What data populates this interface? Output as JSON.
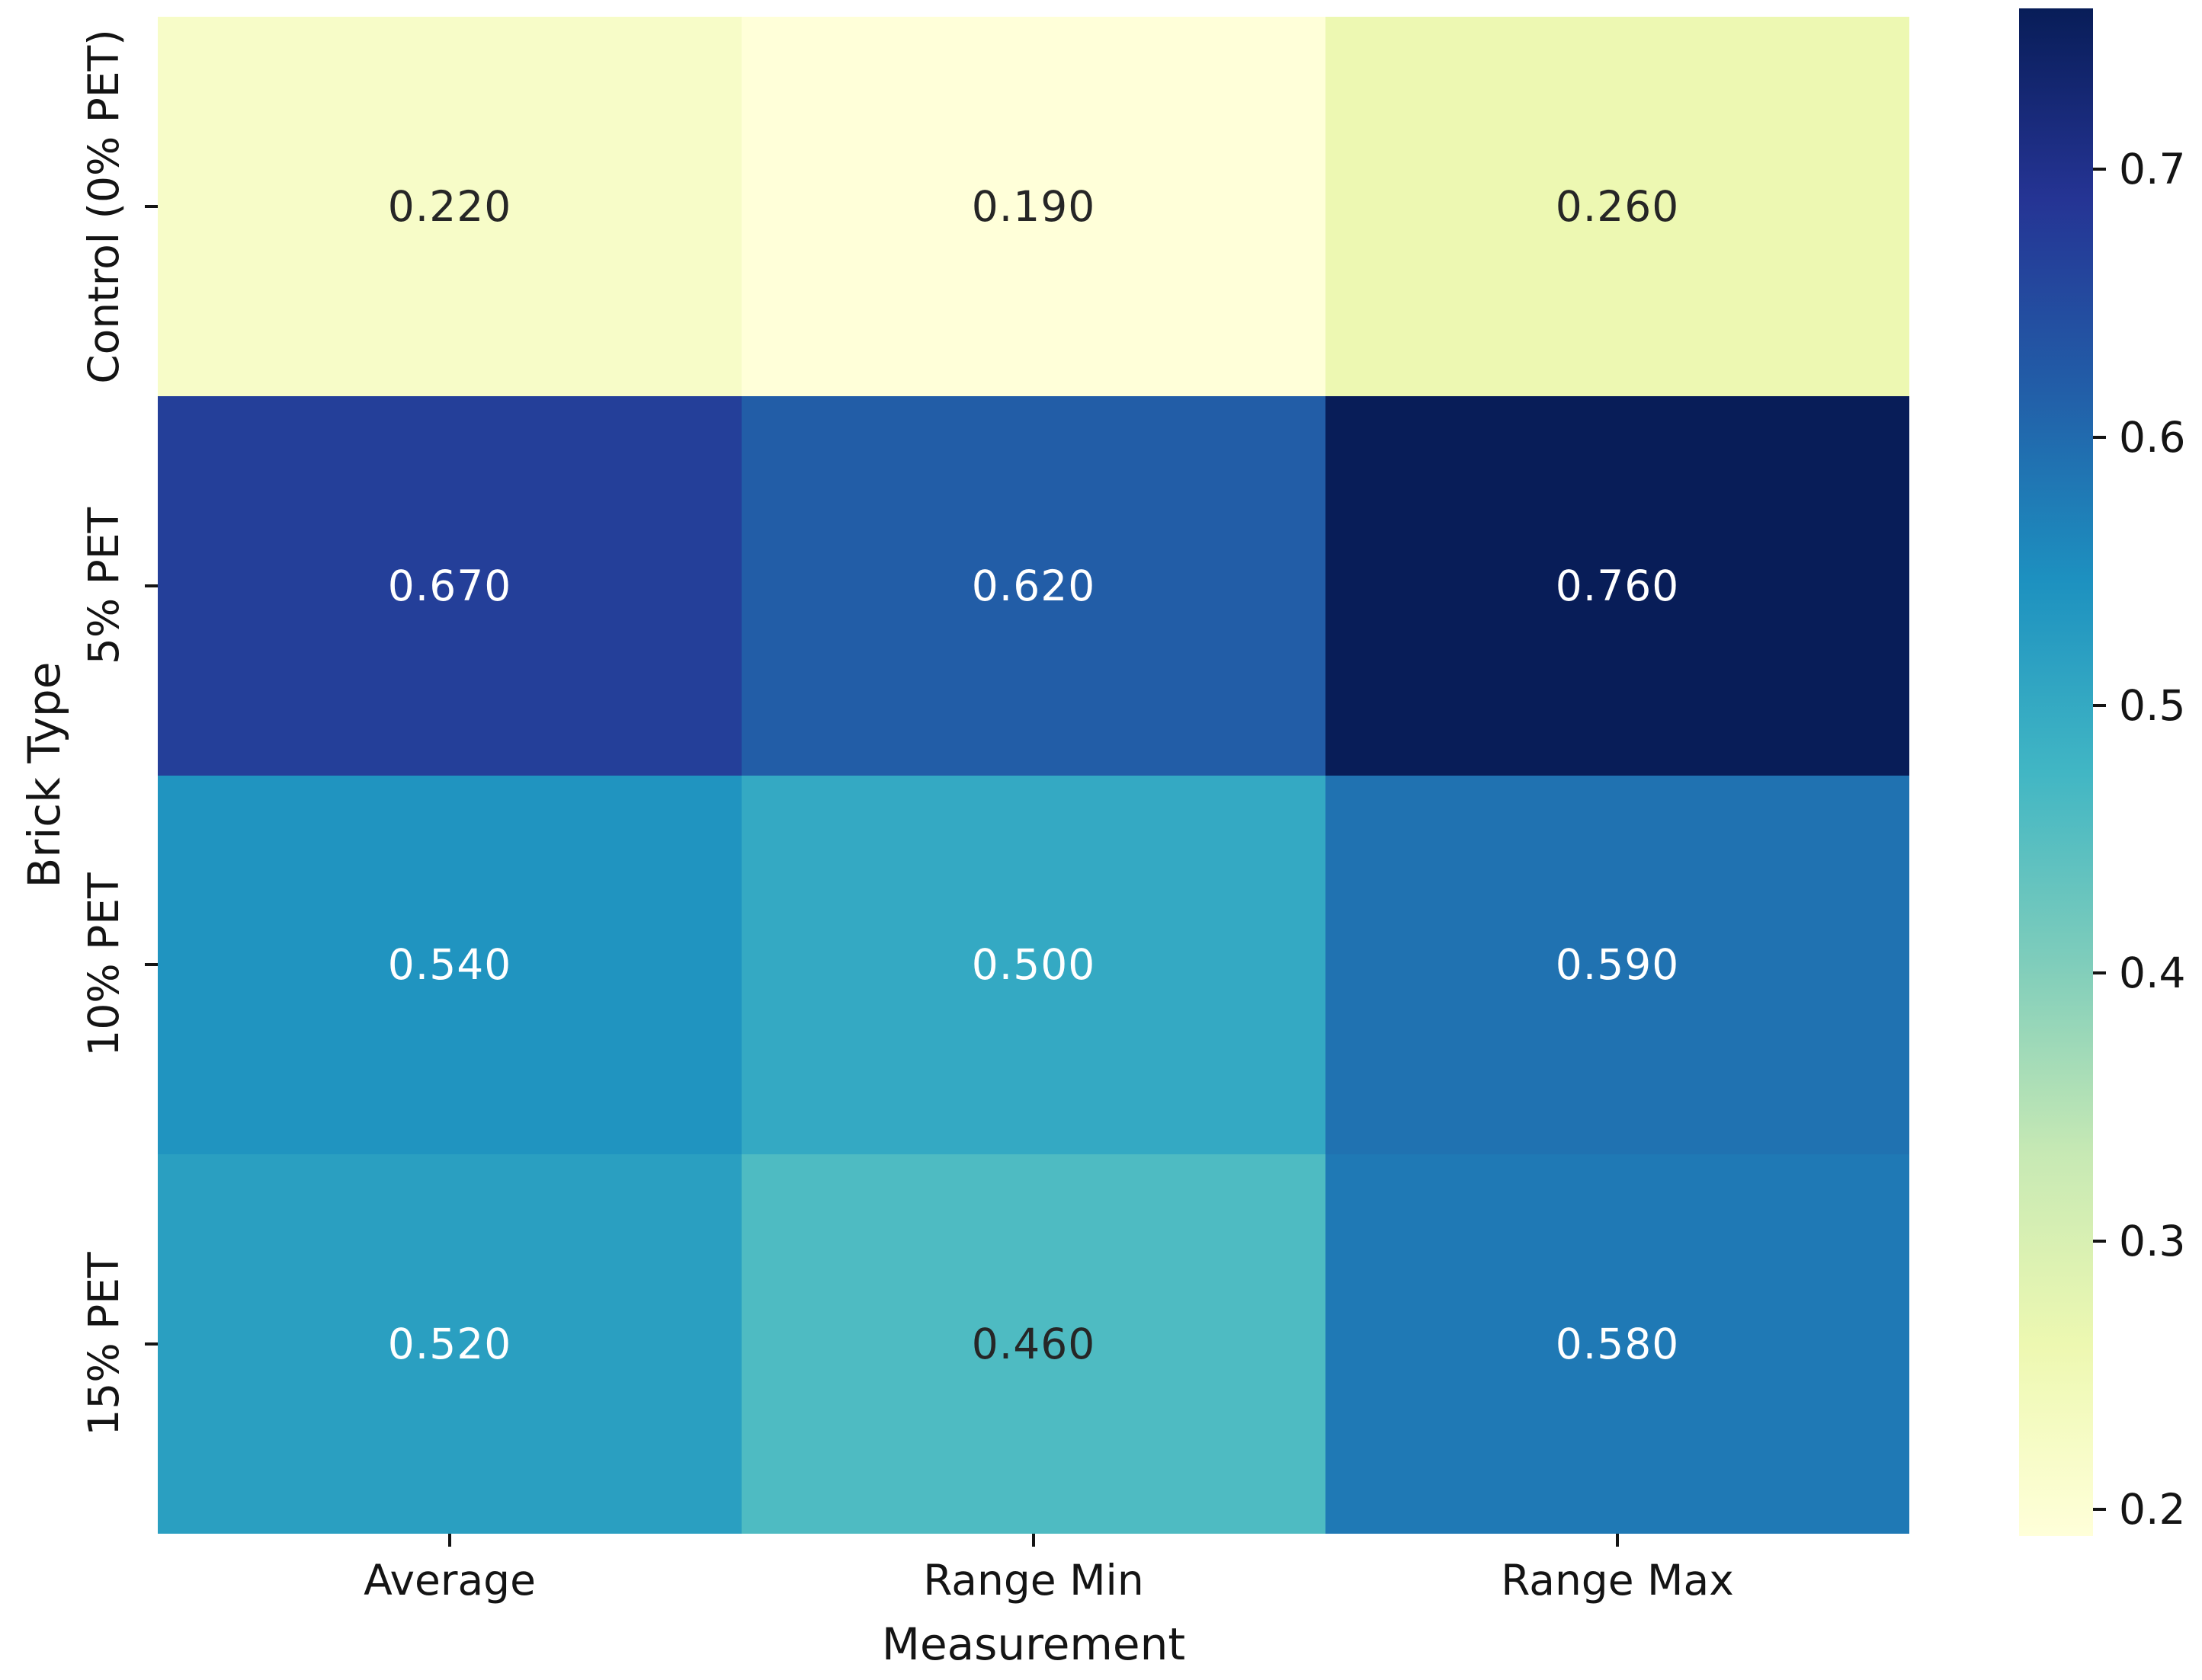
{
  "chart_data": {
    "type": "heatmap",
    "title": "",
    "xlabel": "Measurement",
    "ylabel": "Brick Type",
    "x_categories": [
      "Average",
      "Range Min",
      "Range Max"
    ],
    "y_categories": [
      "Control (0% PET)",
      "5% PET",
      "10% PET",
      "15% PET"
    ],
    "values": [
      [
        0.22,
        0.19,
        0.26
      ],
      [
        0.67,
        0.62,
        0.76
      ],
      [
        0.54,
        0.5,
        0.59
      ],
      [
        0.52,
        0.46,
        0.58
      ]
    ],
    "cell_labels": [
      [
        "0.220",
        "0.190",
        "0.260"
      ],
      [
        "0.670",
        "0.620",
        "0.760"
      ],
      [
        "0.540",
        "0.500",
        "0.590"
      ],
      [
        "0.520",
        "0.460",
        "0.580"
      ]
    ],
    "cell_colors": [
      [
        "#f7fcc8",
        "#ffffd9",
        "#edf8b2"
      ],
      [
        "#243f99",
        "#225da7",
        "#081d58"
      ],
      [
        "#2094c0",
        "#34a9c3",
        "#2072b1"
      ],
      [
        "#2a9fc1",
        "#4ebbc2",
        "#1f79b5"
      ]
    ],
    "cell_text_colors": [
      [
        "dark",
        "dark",
        "dark"
      ],
      [
        "white",
        "white",
        "white"
      ],
      [
        "white",
        "white",
        "white"
      ],
      [
        "white",
        "dark",
        "white"
      ]
    ],
    "colormap": "YlGnBu",
    "vmin": 0.19,
    "vmax": 0.76,
    "grid": "off",
    "legend_position": "colorbar-right",
    "colorbar": {
      "tick_labels": [
        "0.7",
        "0.6",
        "0.5",
        "0.4",
        "0.3",
        "0.2"
      ],
      "tick_values": [
        0.7,
        0.6,
        0.5,
        0.4,
        0.3,
        0.2
      ],
      "gradient_stops": [
        "#ffffd9",
        "#edf8b1",
        "#c7e9b4",
        "#7fcdbb",
        "#41b6c4",
        "#1d91c0",
        "#225ea8",
        "#253494",
        "#081d58"
      ]
    },
    "colors": {
      "annotation_dark": "#262626",
      "annotation_white": "#ffffff",
      "axis_text": "#141414",
      "background": "#ffffff"
    }
  }
}
